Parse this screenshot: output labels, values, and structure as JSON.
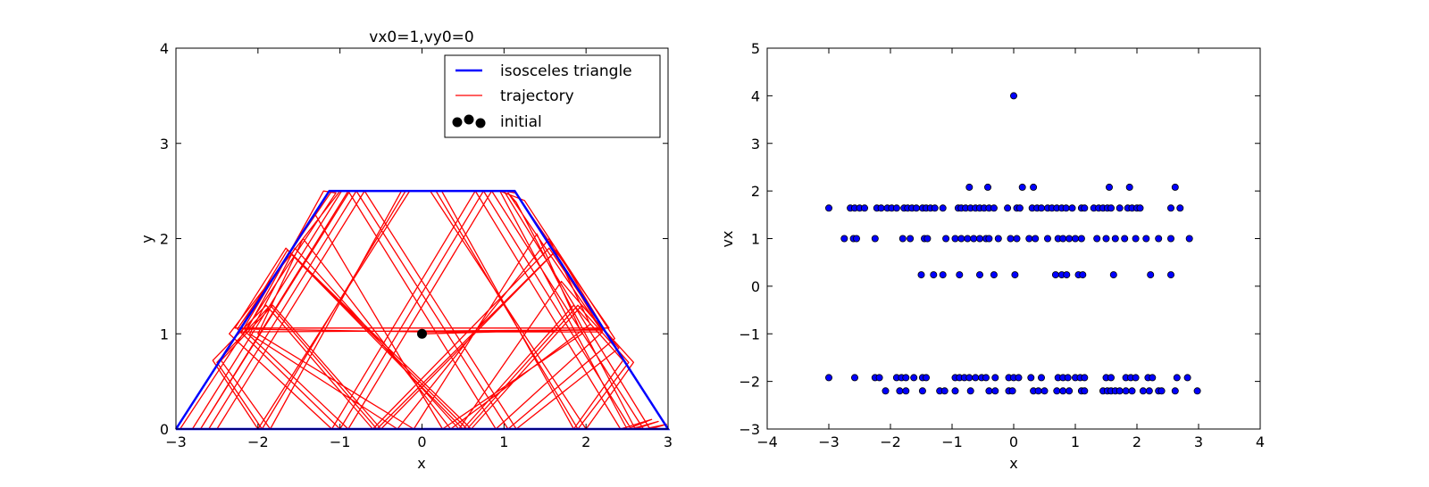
{
  "chart_data": [
    {
      "type": "line",
      "title": "vx0=1,vy0=0",
      "xlabel": "x",
      "ylabel": "y",
      "xlim": [
        -3,
        3
      ],
      "ylim": [
        0,
        4
      ],
      "xticks": [
        "−3",
        "−2",
        "−1",
        "0",
        "1",
        "2",
        "3"
      ],
      "yticks": [
        "0",
        "1",
        "2",
        "3",
        "4"
      ],
      "grid": false,
      "legend_position": "top-right",
      "colors": {
        "boundary": "#0000ff",
        "trajectory": "#ff0000",
        "initial": "#000000"
      },
      "legend": [
        "isosceles triangle",
        "trajectory",
        "initial"
      ],
      "boundary": [
        [
          -3,
          0
        ],
        [
          -1.13,
          2.5
        ],
        [
          1.13,
          2.5
        ],
        [
          3,
          0
        ],
        [
          -3,
          0
        ]
      ],
      "initial_point": [
        0,
        1
      ],
      "trajectory": [
        [
          0,
          1
        ],
        [
          2.22,
          1.05
        ],
        [
          1.64,
          1.88
        ],
        [
          -0.55,
          0
        ],
        [
          -1.85,
          1.3
        ],
        [
          -2.5,
          0.7
        ],
        [
          -1.95,
          0
        ],
        [
          -0.2,
          2.5
        ],
        [
          0.17,
          2.5
        ],
        [
          1.9,
          0
        ],
        [
          2.52,
          0.7
        ],
        [
          1.9,
          1.3
        ],
        [
          0.55,
          0
        ],
        [
          -1.64,
          1.88
        ],
        [
          -2.22,
          1.05
        ],
        [
          0.02,
          1.02
        ],
        [
          2.2,
          1.02
        ],
        [
          1.62,
          1.86
        ],
        [
          -0.5,
          0
        ],
        [
          -1.82,
          1.3
        ],
        [
          -2.45,
          0.72
        ],
        [
          -1.85,
          0
        ],
        [
          -0.25,
          2.5
        ],
        [
          0.24,
          2.5
        ],
        [
          1.85,
          0
        ],
        [
          2.45,
          0.72
        ],
        [
          1.85,
          1.3
        ],
        [
          0.5,
          0
        ],
        [
          -1.62,
          1.86
        ],
        [
          -2.2,
          1.02
        ],
        [
          2.22,
          1.04
        ],
        [
          1.55,
          1.9
        ],
        [
          -0.6,
          0
        ],
        [
          -1.9,
          1.3
        ],
        [
          -2.55,
          0.72
        ],
        [
          -2.0,
          0
        ],
        [
          -0.15,
          2.5
        ],
        [
          0.1,
          2.5
        ],
        [
          2.0,
          0
        ],
        [
          2.58,
          0.7
        ],
        [
          1.95,
          1.3
        ],
        [
          0.6,
          0
        ],
        [
          -1.66,
          1.9
        ],
        [
          -2.28,
          1.06
        ],
        [
          2.28,
          1.06
        ],
        [
          1.14,
          2.48
        ],
        [
          1.0,
          2.5
        ],
        [
          2.78,
          0
        ],
        [
          2.98,
          0.05
        ],
        [
          2.7,
          0
        ],
        [
          0.85,
          2.5
        ],
        [
          -0.9,
          0
        ],
        [
          -2.15,
          1.02
        ],
        [
          -1.2,
          2.5
        ],
        [
          -1.05,
          2.48
        ],
        [
          -2.95,
          0
        ],
        [
          -2.7,
          0
        ],
        [
          -0.9,
          2.5
        ],
        [
          0.9,
          0
        ],
        [
          2.2,
          1.02
        ],
        [
          1.05,
          2.48
        ],
        [
          1.15,
          2.38
        ],
        [
          2.6,
          0
        ],
        [
          2.88,
          0.08
        ],
        [
          2.55,
          0
        ],
        [
          0.75,
          2.5
        ],
        [
          -1.0,
          0
        ],
        [
          -2.25,
          1.05
        ],
        [
          -1.1,
          2.5
        ],
        [
          -0.98,
          2.5
        ],
        [
          -2.8,
          0
        ],
        [
          -2.6,
          0
        ],
        [
          -0.8,
          2.5
        ],
        [
          1.05,
          0
        ],
        [
          2.35,
          0.95
        ],
        [
          1.25,
          2.4
        ],
        [
          0.95,
          2.5
        ],
        [
          2.5,
          0
        ],
        [
          2.8,
          0.1
        ],
        [
          2.42,
          0
        ],
        [
          0.65,
          2.5
        ],
        [
          -1.1,
          0
        ],
        [
          -2.35,
          1.0
        ],
        [
          -1.0,
          2.5
        ],
        [
          -0.88,
          2.5
        ],
        [
          -2.7,
          0
        ],
        [
          -2.5,
          0
        ],
        [
          -0.7,
          2.5
        ],
        [
          1.15,
          0
        ],
        [
          2.4,
          0.85
        ],
        [
          1.7,
          1.55
        ],
        [
          0.45,
          0
        ],
        [
          -1.55,
          1.9
        ],
        [
          -2.1,
          1.0
        ],
        [
          -0.3,
          0
        ],
        [
          1.55,
          2.0
        ],
        [
          2.05,
          1.1
        ],
        [
          0.35,
          0
        ],
        [
          -1.45,
          2.0
        ],
        [
          -2.0,
          1.0
        ],
        [
          -0.1,
          0
        ],
        [
          1.4,
          2.05
        ],
        [
          1.95,
          1.0
        ],
        [
          0.25,
          0
        ],
        [
          -1.3,
          2.25
        ]
      ]
    },
    {
      "type": "scatter",
      "title": "",
      "xlabel": "x",
      "ylabel": "vx",
      "xlim": [
        -4,
        4
      ],
      "ylim": [
        -3,
        5
      ],
      "xticks": [
        "−4",
        "−3",
        "−2",
        "−1",
        "0",
        "1",
        "2",
        "3",
        "4"
      ],
      "yticks": [
        "−3",
        "−2",
        "−1",
        "0",
        "1",
        "2",
        "3",
        "4",
        "5"
      ],
      "grid": false,
      "colors": {
        "marker": "#0000ff",
        "edge": "#000000"
      },
      "points": [
        [
          0,
          4
        ],
        [
          -0.72,
          2.08
        ],
        [
          -0.42,
          2.08
        ],
        [
          0.14,
          2.08
        ],
        [
          0.32,
          2.08
        ],
        [
          1.55,
          2.08
        ],
        [
          1.88,
          2.08
        ],
        [
          2.62,
          2.08
        ],
        [
          -3.0,
          1.64
        ],
        [
          -2.65,
          1.64
        ],
        [
          -2.58,
          1.64
        ],
        [
          -2.5,
          1.64
        ],
        [
          -2.42,
          1.64
        ],
        [
          -2.22,
          1.64
        ],
        [
          -2.15,
          1.64
        ],
        [
          -2.05,
          1.64
        ],
        [
          -1.98,
          1.64
        ],
        [
          -1.9,
          1.64
        ],
        [
          -1.78,
          1.64
        ],
        [
          -1.72,
          1.64
        ],
        [
          -1.65,
          1.64
        ],
        [
          -1.58,
          1.64
        ],
        [
          -1.48,
          1.64
        ],
        [
          -1.42,
          1.64
        ],
        [
          -1.35,
          1.64
        ],
        [
          -1.28,
          1.64
        ],
        [
          -1.15,
          1.64
        ],
        [
          -0.9,
          1.64
        ],
        [
          -0.85,
          1.64
        ],
        [
          -0.78,
          1.64
        ],
        [
          -0.7,
          1.64
        ],
        [
          -0.62,
          1.64
        ],
        [
          -0.55,
          1.64
        ],
        [
          -0.48,
          1.64
        ],
        [
          -0.4,
          1.64
        ],
        [
          -0.32,
          1.64
        ],
        [
          -0.1,
          1.64
        ],
        [
          0.05,
          1.64
        ],
        [
          0.1,
          1.64
        ],
        [
          0.3,
          1.64
        ],
        [
          0.38,
          1.64
        ],
        [
          0.45,
          1.64
        ],
        [
          0.55,
          1.64
        ],
        [
          0.62,
          1.64
        ],
        [
          0.7,
          1.64
        ],
        [
          0.78,
          1.64
        ],
        [
          0.85,
          1.64
        ],
        [
          0.95,
          1.64
        ],
        [
          1.1,
          1.64
        ],
        [
          1.15,
          1.64
        ],
        [
          1.3,
          1.64
        ],
        [
          1.38,
          1.64
        ],
        [
          1.45,
          1.64
        ],
        [
          1.52,
          1.64
        ],
        [
          1.58,
          1.64
        ],
        [
          1.72,
          1.64
        ],
        [
          1.85,
          1.64
        ],
        [
          1.92,
          1.64
        ],
        [
          2.0,
          1.64
        ],
        [
          2.05,
          1.64
        ],
        [
          2.55,
          1.64
        ],
        [
          2.7,
          1.64
        ],
        [
          -2.75,
          1.0
        ],
        [
          -2.6,
          1.0
        ],
        [
          -2.55,
          1.0
        ],
        [
          -2.25,
          1.0
        ],
        [
          -1.8,
          1.0
        ],
        [
          -1.68,
          1.0
        ],
        [
          -1.45,
          1.0
        ],
        [
          -1.4,
          1.0
        ],
        [
          -1.1,
          1.0
        ],
        [
          -0.95,
          1.0
        ],
        [
          -0.85,
          1.0
        ],
        [
          -0.75,
          1.0
        ],
        [
          -0.65,
          1.0
        ],
        [
          -0.55,
          1.0
        ],
        [
          -0.45,
          1.0
        ],
        [
          -0.4,
          1.0
        ],
        [
          -0.25,
          1.0
        ],
        [
          -0.05,
          1.0
        ],
        [
          0.05,
          1.0
        ],
        [
          0.25,
          1.0
        ],
        [
          0.35,
          1.0
        ],
        [
          0.55,
          1.0
        ],
        [
          0.72,
          1.0
        ],
        [
          0.8,
          1.0
        ],
        [
          0.9,
          1.0
        ],
        [
          1.0,
          1.0
        ],
        [
          1.1,
          1.0
        ],
        [
          1.35,
          1.0
        ],
        [
          1.5,
          1.0
        ],
        [
          1.65,
          1.0
        ],
        [
          1.8,
          1.0
        ],
        [
          1.98,
          1.0
        ],
        [
          2.15,
          1.0
        ],
        [
          2.35,
          1.0
        ],
        [
          2.55,
          1.0
        ],
        [
          2.85,
          1.0
        ],
        [
          -1.5,
          0.24
        ],
        [
          -1.3,
          0.24
        ],
        [
          -1.15,
          0.24
        ],
        [
          -0.88,
          0.24
        ],
        [
          -0.55,
          0.24
        ],
        [
          -0.32,
          0.24
        ],
        [
          0.02,
          0.24
        ],
        [
          0.68,
          0.24
        ],
        [
          0.78,
          0.24
        ],
        [
          0.86,
          0.24
        ],
        [
          1.05,
          0.24
        ],
        [
          1.12,
          0.24
        ],
        [
          1.62,
          0.24
        ],
        [
          2.22,
          0.24
        ],
        [
          2.55,
          0.24
        ],
        [
          -3.0,
          -1.92
        ],
        [
          -2.58,
          -1.92
        ],
        [
          -2.25,
          -1.92
        ],
        [
          -2.18,
          -1.92
        ],
        [
          -1.9,
          -1.92
        ],
        [
          -1.82,
          -1.92
        ],
        [
          -1.75,
          -1.92
        ],
        [
          -1.62,
          -1.92
        ],
        [
          -1.48,
          -1.92
        ],
        [
          -1.42,
          -1.92
        ],
        [
          -0.95,
          -1.92
        ],
        [
          -0.88,
          -1.92
        ],
        [
          -0.8,
          -1.92
        ],
        [
          -0.72,
          -1.92
        ],
        [
          -0.62,
          -1.92
        ],
        [
          -0.52,
          -1.92
        ],
        [
          -0.45,
          -1.92
        ],
        [
          -0.3,
          -1.92
        ],
        [
          -0.08,
          -1.92
        ],
        [
          0.0,
          -1.92
        ],
        [
          0.08,
          -1.92
        ],
        [
          0.28,
          -1.92
        ],
        [
          0.45,
          -1.92
        ],
        [
          0.72,
          -1.92
        ],
        [
          0.8,
          -1.92
        ],
        [
          0.88,
          -1.92
        ],
        [
          1.0,
          -1.92
        ],
        [
          1.08,
          -1.92
        ],
        [
          1.15,
          -1.92
        ],
        [
          1.5,
          -1.92
        ],
        [
          1.58,
          -1.92
        ],
        [
          1.82,
          -1.92
        ],
        [
          1.9,
          -1.92
        ],
        [
          1.98,
          -1.92
        ],
        [
          2.18,
          -1.92
        ],
        [
          2.25,
          -1.92
        ],
        [
          2.65,
          -1.92
        ],
        [
          2.82,
          -1.92
        ],
        [
          -2.08,
          -2.2
        ],
        [
          -1.85,
          -2.2
        ],
        [
          -1.75,
          -2.2
        ],
        [
          -1.48,
          -2.2
        ],
        [
          -1.2,
          -2.2
        ],
        [
          -1.12,
          -2.2
        ],
        [
          -0.95,
          -2.2
        ],
        [
          -0.7,
          -2.2
        ],
        [
          -0.4,
          -2.2
        ],
        [
          -0.3,
          -2.2
        ],
        [
          -0.08,
          -2.2
        ],
        [
          -0.02,
          -2.2
        ],
        [
          0.32,
          -2.2
        ],
        [
          0.4,
          -2.2
        ],
        [
          0.5,
          -2.2
        ],
        [
          0.7,
          -2.2
        ],
        [
          0.8,
          -2.2
        ],
        [
          0.9,
          -2.2
        ],
        [
          1.1,
          -2.2
        ],
        [
          1.15,
          -2.2
        ],
        [
          1.45,
          -2.2
        ],
        [
          1.52,
          -2.2
        ],
        [
          1.58,
          -2.2
        ],
        [
          1.65,
          -2.2
        ],
        [
          1.72,
          -2.2
        ],
        [
          1.82,
          -2.2
        ],
        [
          1.92,
          -2.2
        ],
        [
          2.1,
          -2.2
        ],
        [
          2.2,
          -2.2
        ],
        [
          2.35,
          -2.2
        ],
        [
          2.4,
          -2.2
        ],
        [
          2.62,
          -2.2
        ],
        [
          2.98,
          -2.2
        ]
      ]
    }
  ]
}
